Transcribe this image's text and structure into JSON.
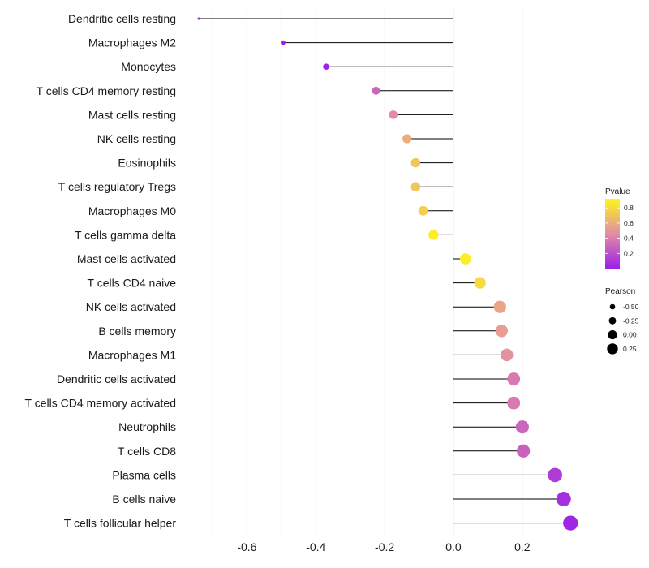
{
  "chart_data": {
    "type": "lollipop",
    "title": "",
    "xlabel": "",
    "ylabel": "",
    "xlim": [
      -0.78,
      0.37
    ],
    "x_ticks": [
      "-0.6",
      "-0.4",
      "-0.2",
      "0.0",
      "0.2"
    ],
    "x_tick_values": [
      -0.6,
      -0.4,
      -0.2,
      0.0,
      0.2
    ],
    "categories": [
      "Dendritic cells resting",
      "Macrophages M2",
      "Monocytes",
      "T cells CD4 memory resting",
      "Mast cells resting",
      "NK cells resting",
      "Eosinophils",
      "T cells regulatory  Tregs",
      "Macrophages M0",
      "T cells gamma delta",
      "Mast cells activated",
      "T cells CD4 naive",
      "NK cells activated",
      "B cells memory",
      "Macrophages M1",
      "Dendritic cells activated",
      "T cells CD4 memory activated",
      "Neutrophils",
      "T cells CD8",
      "Plasma cells",
      "B cells naive",
      "T cells follicular helper"
    ],
    "pearson": [
      -0.74,
      -0.495,
      -0.37,
      -0.225,
      -0.175,
      -0.135,
      -0.11,
      -0.11,
      -0.088,
      -0.058,
      0.035,
      0.077,
      0.135,
      0.14,
      0.155,
      0.175,
      0.175,
      0.2,
      0.203,
      0.295,
      0.32,
      0.34
    ],
    "pvalue": [
      0.0,
      0.0,
      0.01,
      0.3,
      0.45,
      0.6,
      0.7,
      0.7,
      0.75,
      0.88,
      0.88,
      0.8,
      0.56,
      0.53,
      0.48,
      0.38,
      0.38,
      0.3,
      0.28,
      0.12,
      0.07,
      0.03
    ],
    "color_scale": {
      "low_color": "#9b1fe9",
      "mid_color": "#e38da5",
      "high_color": "#fdf61c",
      "range": [
        0.0,
        0.92
      ]
    },
    "legends": {
      "pvalue": {
        "title": "Pvalue",
        "ticks": [
          "0.8",
          "0.6",
          "0.4",
          "0.2"
        ],
        "tick_values": [
          0.8,
          0.6,
          0.4,
          0.2
        ]
      },
      "pearson": {
        "title": "Pearson",
        "labels": [
          "-0.50",
          "-0.25",
          "0.00",
          "0.25"
        ],
        "values": [
          -0.5,
          -0.25,
          0.0,
          0.25
        ]
      }
    },
    "grid": true
  }
}
